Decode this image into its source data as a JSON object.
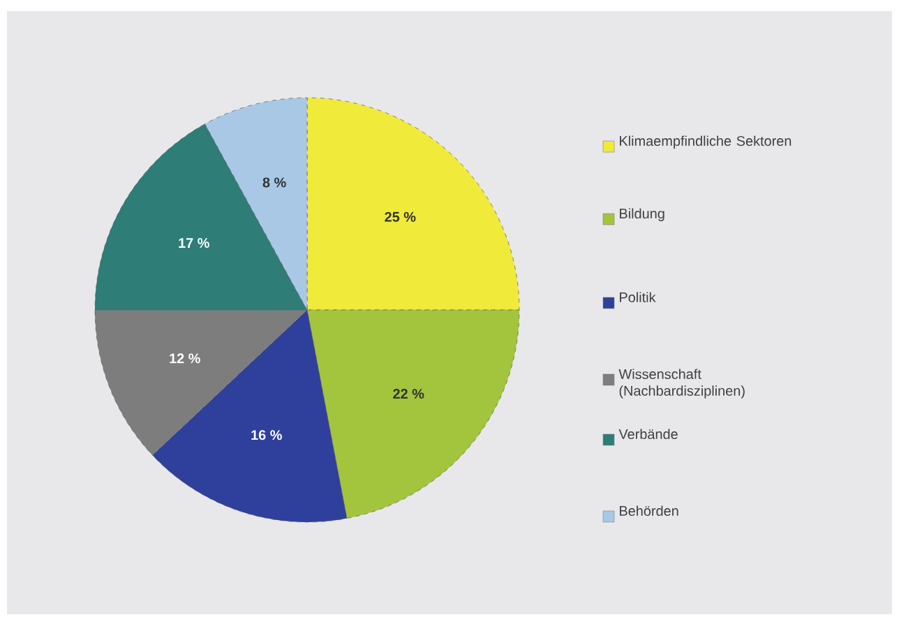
{
  "chart_data": {
    "type": "pie",
    "categories": [
      "Klimaempfindliche Sektoren",
      "Bildung",
      "Politik",
      "Wissenschaft (Nachbardisziplinen)",
      "Verbände",
      "Behörden"
    ],
    "values": [
      25,
      22,
      16,
      12,
      17,
      8
    ],
    "value_labels": [
      "25 %",
      "22 %",
      "16 %",
      "12 %",
      "17 %",
      "8 %"
    ],
    "colors": [
      "#f0ea3a",
      "#a3c43d",
      "#2f3f9c",
      "#7d7d7d",
      "#2e7d77",
      "#a9c8e6"
    ],
    "legend": "right"
  }
}
